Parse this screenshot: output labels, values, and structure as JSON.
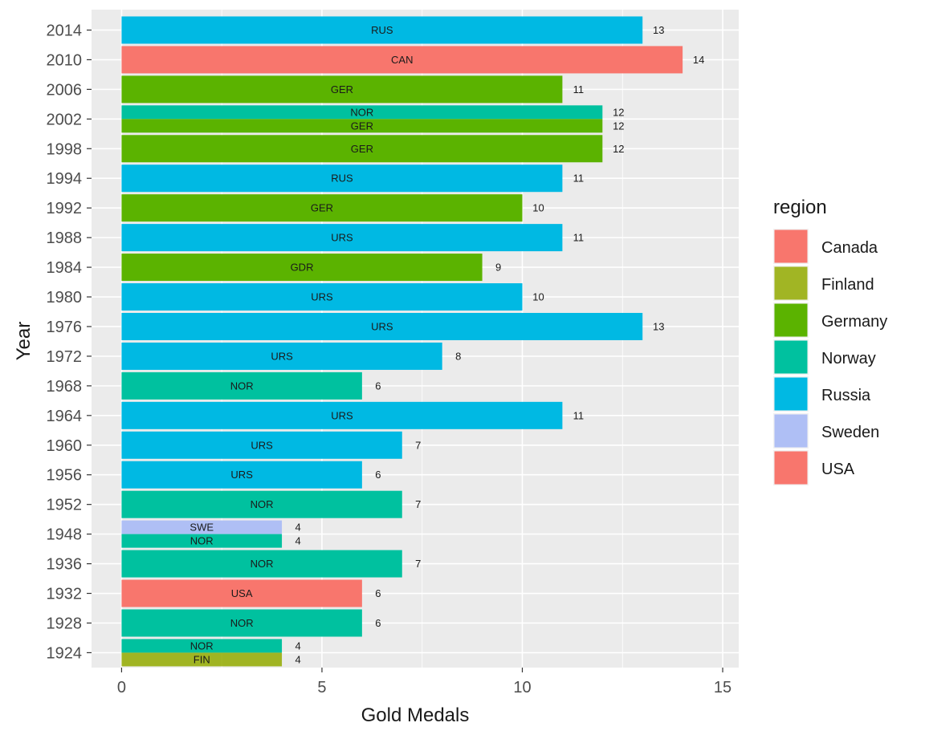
{
  "chart_data": {
    "type": "bar",
    "orientation": "horizontal",
    "xlabel": "Gold Medals",
    "ylabel": "Year",
    "xlim": [
      -0.75,
      15.4
    ],
    "x_ticks": [
      0,
      5,
      10,
      15
    ],
    "grid": true,
    "legend_position": "right",
    "legend_title": "region",
    "regions": [
      {
        "name": "Canada",
        "color": "#F8766D"
      },
      {
        "name": "Finland",
        "color": "#93AA00"
      },
      {
        "name": "Germany",
        "color": "#5BB300"
      },
      {
        "name": "Norway",
        "color": "#00C19F"
      },
      {
        "name": "Russia",
        "color": "#00B9E3"
      },
      {
        "name": "Sweden",
        "color": "#AFBFF5"
      },
      {
        "name": "USA",
        "color": "#F8766D"
      }
    ],
    "years": [
      "1924",
      "1928",
      "1932",
      "1936",
      "1948",
      "1952",
      "1956",
      "1960",
      "1964",
      "1968",
      "1972",
      "1976",
      "1980",
      "1984",
      "1988",
      "1992",
      "1994",
      "1998",
      "2002",
      "2006",
      "2010",
      "2014"
    ],
    "bars": [
      {
        "year": "2014",
        "noc": "RUS",
        "region": "Russia",
        "gold": 13
      },
      {
        "year": "2010",
        "noc": "CAN",
        "region": "Canada",
        "gold": 14
      },
      {
        "year": "2006",
        "noc": "GER",
        "region": "Germany",
        "gold": 11
      },
      {
        "year": "2002",
        "noc": "NOR",
        "region": "Norway",
        "gold": 12
      },
      {
        "year": "2002",
        "noc": "GER",
        "region": "Germany",
        "gold": 12
      },
      {
        "year": "1998",
        "noc": "GER",
        "region": "Germany",
        "gold": 12
      },
      {
        "year": "1994",
        "noc": "RUS",
        "region": "Russia",
        "gold": 11
      },
      {
        "year": "1992",
        "noc": "GER",
        "region": "Germany",
        "gold": 10
      },
      {
        "year": "1988",
        "noc": "URS",
        "region": "Russia",
        "gold": 11
      },
      {
        "year": "1984",
        "noc": "GDR",
        "region": "Germany",
        "gold": 9
      },
      {
        "year": "1980",
        "noc": "URS",
        "region": "Russia",
        "gold": 10
      },
      {
        "year": "1976",
        "noc": "URS",
        "region": "Russia",
        "gold": 13
      },
      {
        "year": "1972",
        "noc": "URS",
        "region": "Russia",
        "gold": 8
      },
      {
        "year": "1968",
        "noc": "NOR",
        "region": "Norway",
        "gold": 6
      },
      {
        "year": "1964",
        "noc": "URS",
        "region": "Russia",
        "gold": 11
      },
      {
        "year": "1960",
        "noc": "URS",
        "region": "Russia",
        "gold": 7
      },
      {
        "year": "1956",
        "noc": "URS",
        "region": "Russia",
        "gold": 6
      },
      {
        "year": "1952",
        "noc": "NOR",
        "region": "Norway",
        "gold": 7
      },
      {
        "year": "1948",
        "noc": "SWE",
        "region": "Sweden",
        "gold": 4
      },
      {
        "year": "1948",
        "noc": "NOR",
        "region": "Norway",
        "gold": 4
      },
      {
        "year": "1936",
        "noc": "NOR",
        "region": "Norway",
        "gold": 7
      },
      {
        "year": "1932",
        "noc": "USA",
        "region": "USA",
        "gold": 6
      },
      {
        "year": "1928",
        "noc": "NOR",
        "region": "Norway",
        "gold": 6
      },
      {
        "year": "1924",
        "noc": "NOR",
        "region": "Norway",
        "gold": 4
      },
      {
        "year": "1924",
        "noc": "FIN",
        "region": "Finland",
        "gold": 4
      }
    ]
  }
}
